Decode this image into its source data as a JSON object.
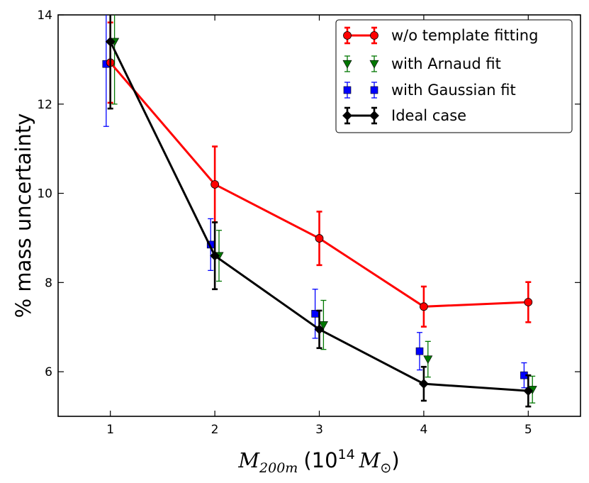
{
  "chart_data": {
    "type": "line",
    "title": "",
    "xlabel": {
      "main": "M",
      "sub": "200m",
      "paren_open": "(10",
      "exp": "14",
      "unit": "M",
      "unit_sub": "⊙",
      "paren_close": ")"
    },
    "ylabel": "% mass uncertainty",
    "xlim": [
      0.5,
      5.5
    ],
    "ylim": [
      5,
      14
    ],
    "xticks": [
      "1",
      "2",
      "3",
      "4",
      "5"
    ],
    "yticks": [
      "6",
      "8",
      "10",
      "12",
      "14"
    ],
    "grid": false,
    "legend_position": "top-right",
    "series": [
      {
        "name": "w/o template fitting",
        "color": "#ff0000",
        "marker": "circle",
        "line": true,
        "x": [
          1.0,
          2.0,
          3.0,
          4.0,
          5.0
        ],
        "y": [
          12.93,
          10.2,
          8.99,
          7.46,
          7.56
        ],
        "err": [
          0.9,
          0.85,
          0.6,
          0.45,
          0.45
        ]
      },
      {
        "name": "with Arnaud fit",
        "color": "#007700",
        "marker": "triangle-down",
        "line": false,
        "x": [
          1.04,
          2.04,
          3.04,
          4.04,
          5.04
        ],
        "y": [
          13.4,
          8.6,
          7.05,
          6.28,
          5.6
        ],
        "err": [
          1.4,
          0.57,
          0.55,
          0.4,
          0.3
        ]
      },
      {
        "name": "with Gaussian fit",
        "color": "#0000ff",
        "marker": "square",
        "line": false,
        "x": [
          0.96,
          1.96,
          2.96,
          3.96,
          4.96
        ],
        "y": [
          12.9,
          8.85,
          7.3,
          6.46,
          5.92
        ],
        "err": [
          1.4,
          0.58,
          0.55,
          0.42,
          0.28
        ]
      },
      {
        "name": "Ideal case",
        "color": "#000000",
        "marker": "diamond",
        "line": true,
        "x": [
          1.0,
          2.0,
          3.0,
          4.0,
          5.0
        ],
        "y": [
          13.4,
          8.6,
          6.95,
          5.73,
          5.57
        ],
        "err": [
          1.5,
          0.75,
          0.42,
          0.38,
          0.35
        ]
      }
    ]
  }
}
